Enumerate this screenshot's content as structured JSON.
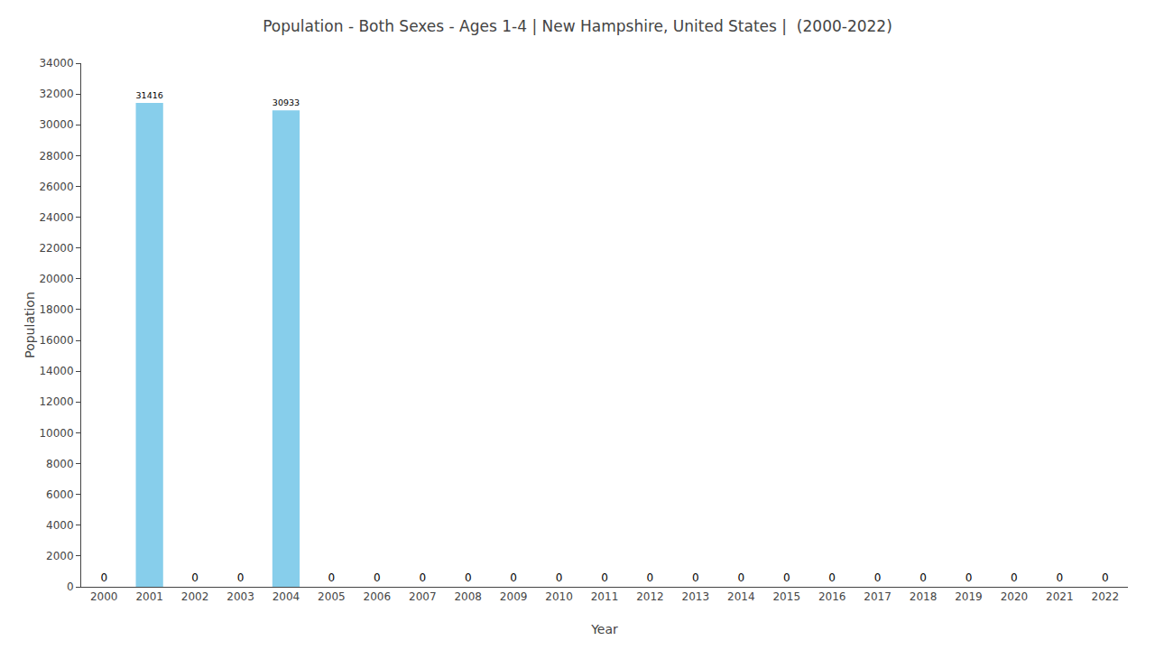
{
  "chart_data": {
    "type": "bar",
    "title": "Population - Both Sexes - Ages 1-4 | New Hampshire, United States |  (2000-2022)",
    "x_label": "Year",
    "y_label": "Population",
    "x": [
      2000,
      2001,
      2002,
      2003,
      2004,
      2005,
      2006,
      2007,
      2008,
      2009,
      2010,
      2011,
      2012,
      2013,
      2014,
      2015,
      2016,
      2017,
      2018,
      2019,
      2020,
      2021,
      2022
    ],
    "values": [
      0,
      31416,
      0,
      0,
      30933,
      0,
      0,
      0,
      0,
      0,
      0,
      0,
      0,
      0,
      0,
      0,
      0,
      0,
      0,
      0,
      0,
      0,
      0
    ],
    "color": "#87CEEB",
    "xlim": [
      1999.5,
      2022.5
    ],
    "xticks": [
      2000,
      2001,
      2002,
      2003,
      2004,
      2005,
      2006,
      2007,
      2008,
      2009,
      2010,
      2011,
      2012,
      2013,
      2014,
      2015,
      2016,
      2017,
      2018,
      2019,
      2020,
      2021,
      2022
    ],
    "ylim": [
      0,
      34000
    ],
    "yticks": [
      0,
      2000,
      4000,
      6000,
      8000,
      10000,
      12000,
      14000,
      16000,
      18000,
      20000,
      22000,
      24000,
      26000,
      28000,
      30000,
      32000,
      34000
    ],
    "grid": false,
    "data_labels": true
  }
}
